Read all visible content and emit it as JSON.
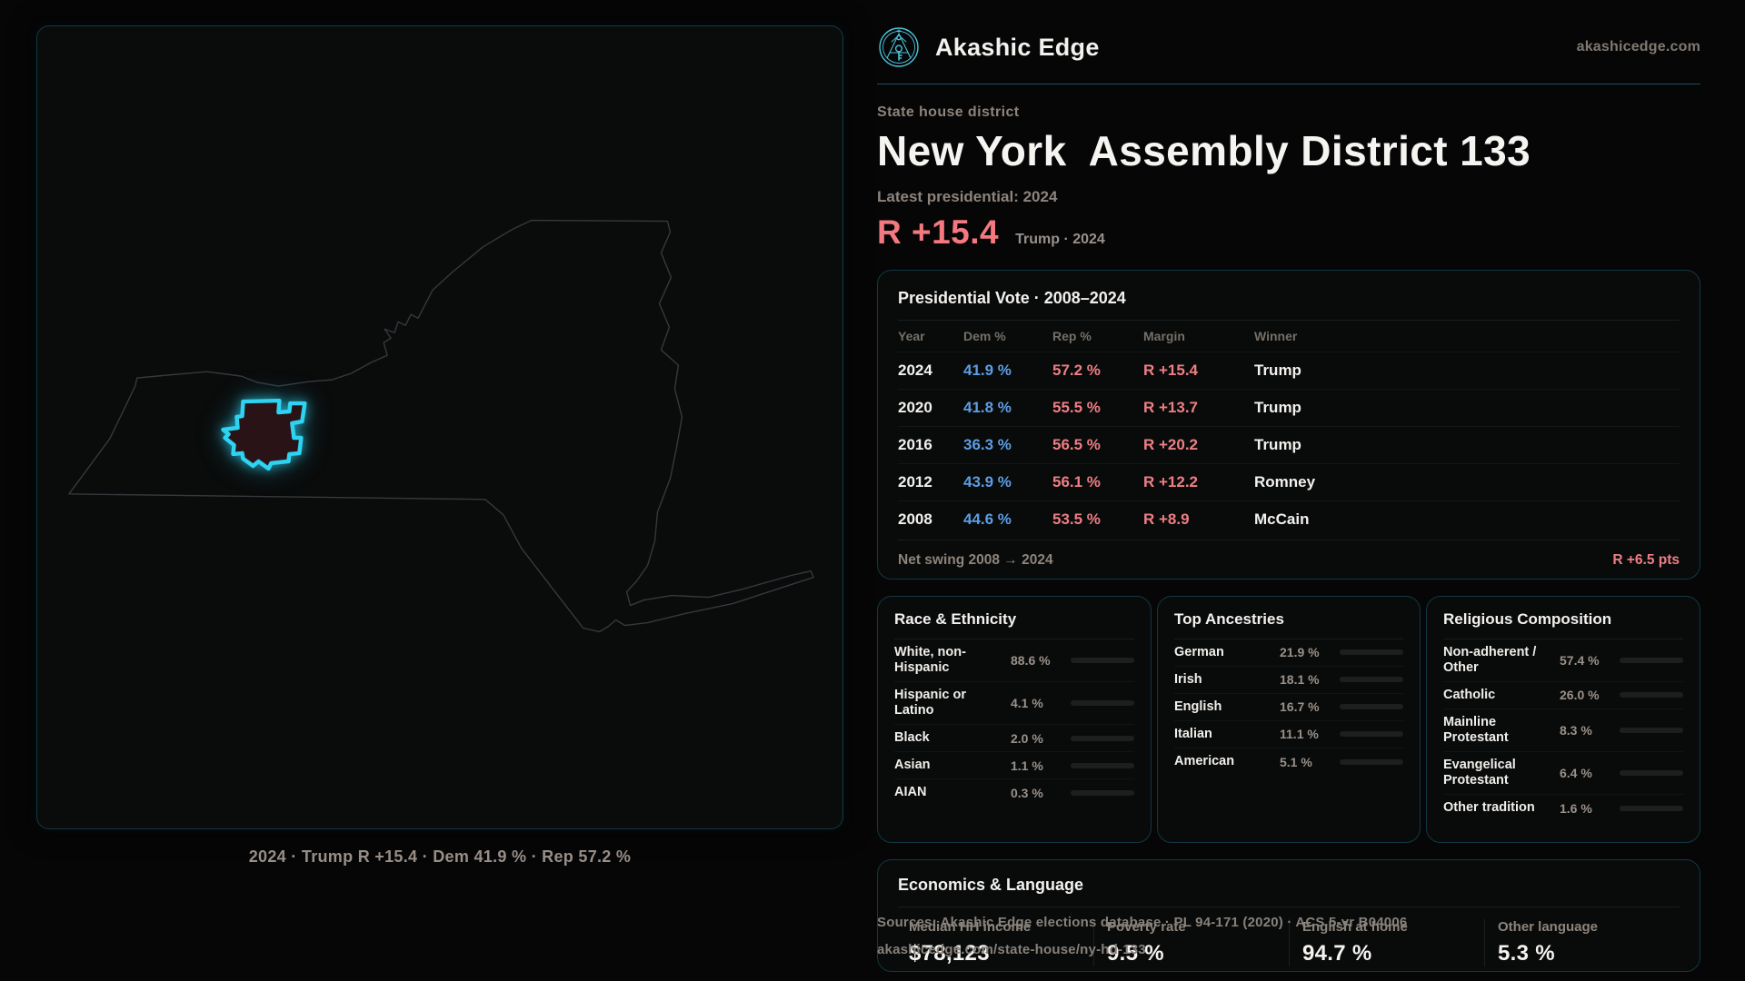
{
  "brand": {
    "name": "Akashic Edge",
    "website": "akashicedge.com"
  },
  "header": {
    "eyebrow": "State house district",
    "title_state": "New York",
    "title_seat": "Assembly District 133",
    "latest_label": "Latest presidential: 2024",
    "margin_value": "R +15.4",
    "margin_context": "Trump · 2024"
  },
  "map": {
    "caption": "2024 · Trump R +15.4 · Dem 41.9 % · Rep 57.2 %"
  },
  "presidential_table": {
    "title": "Presidential Vote · 2008–2024",
    "columns": {
      "year": "Year",
      "dem": "Dem %",
      "rep": "Rep %",
      "margin": "Margin",
      "winner": "Winner"
    },
    "rows": [
      {
        "year": "2024",
        "dem": "41.9 %",
        "rep": "57.2 %",
        "margin": "R +15.4",
        "winner": "Trump"
      },
      {
        "year": "2020",
        "dem": "41.8 %",
        "rep": "55.5 %",
        "margin": "R +13.7",
        "winner": "Trump"
      },
      {
        "year": "2016",
        "dem": "36.3 %",
        "rep": "56.5 %",
        "margin": "R +20.2",
        "winner": "Trump"
      },
      {
        "year": "2012",
        "dem": "43.9 %",
        "rep": "56.1 %",
        "margin": "R +12.2",
        "winner": "Romney"
      },
      {
        "year": "2008",
        "dem": "44.6 %",
        "rep": "53.5 %",
        "margin": "R +8.9",
        "winner": "McCain"
      }
    ],
    "net_swing_label": "Net swing 2008 → 2024",
    "net_swing_value": "R +6.5 pts"
  },
  "race_ethnicity": {
    "title": "Race & Ethnicity",
    "rows": [
      {
        "label": "White, non-Hispanic",
        "value": "88.6 %",
        "pct": 88.6,
        "color": "#93a7c0"
      },
      {
        "label": "Hispanic or Latino",
        "value": "4.1 %",
        "pct": 4.1,
        "color": "#e8a23c"
      },
      {
        "label": "Black",
        "value": "2.0 %",
        "pct": 2.0,
        "color": "#8f83e8"
      },
      {
        "label": "Asian",
        "value": "1.1 %",
        "pct": 1.1,
        "color": "#46c6a4"
      },
      {
        "label": "AIAN",
        "value": "0.3 %",
        "pct": 0.3,
        "color": "#d97d36"
      }
    ]
  },
  "ancestries": {
    "title": "Top Ancestries",
    "rows": [
      {
        "label": "German",
        "value": "21.9 %",
        "pct": 21.9,
        "color": "#93a7c0"
      },
      {
        "label": "Irish",
        "value": "18.1 %",
        "pct": 18.1,
        "color": "#93a7c0"
      },
      {
        "label": "English",
        "value": "16.7 %",
        "pct": 16.7,
        "color": "#93a7c0"
      },
      {
        "label": "Italian",
        "value": "11.1 %",
        "pct": 11.1,
        "color": "#93a7c0"
      },
      {
        "label": "American",
        "value": "5.1 %",
        "pct": 5.1,
        "color": "#93a7c0"
      }
    ]
  },
  "religion": {
    "title": "Religious Composition",
    "rows": [
      {
        "label": "Non-adherent / Other",
        "value": "57.4 %",
        "pct": 57.4,
        "color": "#7f8ba0"
      },
      {
        "label": "Catholic",
        "value": "26.0 %",
        "pct": 26.0,
        "color": "#e3b33c"
      },
      {
        "label": "Mainline Protestant",
        "value": "8.3 %",
        "pct": 8.3,
        "color": "#4d8fe8"
      },
      {
        "label": "Evangelical Protestant",
        "value": "6.4 %",
        "pct": 6.4,
        "color": "#e06862"
      },
      {
        "label": "Other tradition",
        "value": "1.6 %",
        "pct": 1.6,
        "color": "#d2d2d2"
      }
    ]
  },
  "economics": {
    "title": "Economics & Language",
    "stats": [
      {
        "label": "Median HH income",
        "value": "$78,123"
      },
      {
        "label": "Poverty rate",
        "value": "9.5 %"
      },
      {
        "label": "English at home",
        "value": "94.7 %"
      },
      {
        "label": "Other language",
        "value": "5.3 %"
      }
    ]
  },
  "footer": {
    "line1": "Sources: Akashic Edge elections database · PL 94-171 (2020) · ACS 5-yr B04006",
    "line2": "akashicedge.com/state-house/ny-hd-133"
  },
  "colors": {
    "accent": "#2ed3f2",
    "logo": "#4ac4da",
    "dem": "#5d9de5",
    "rep": "#ef7e84",
    "rep-bright": "#f4787f"
  }
}
